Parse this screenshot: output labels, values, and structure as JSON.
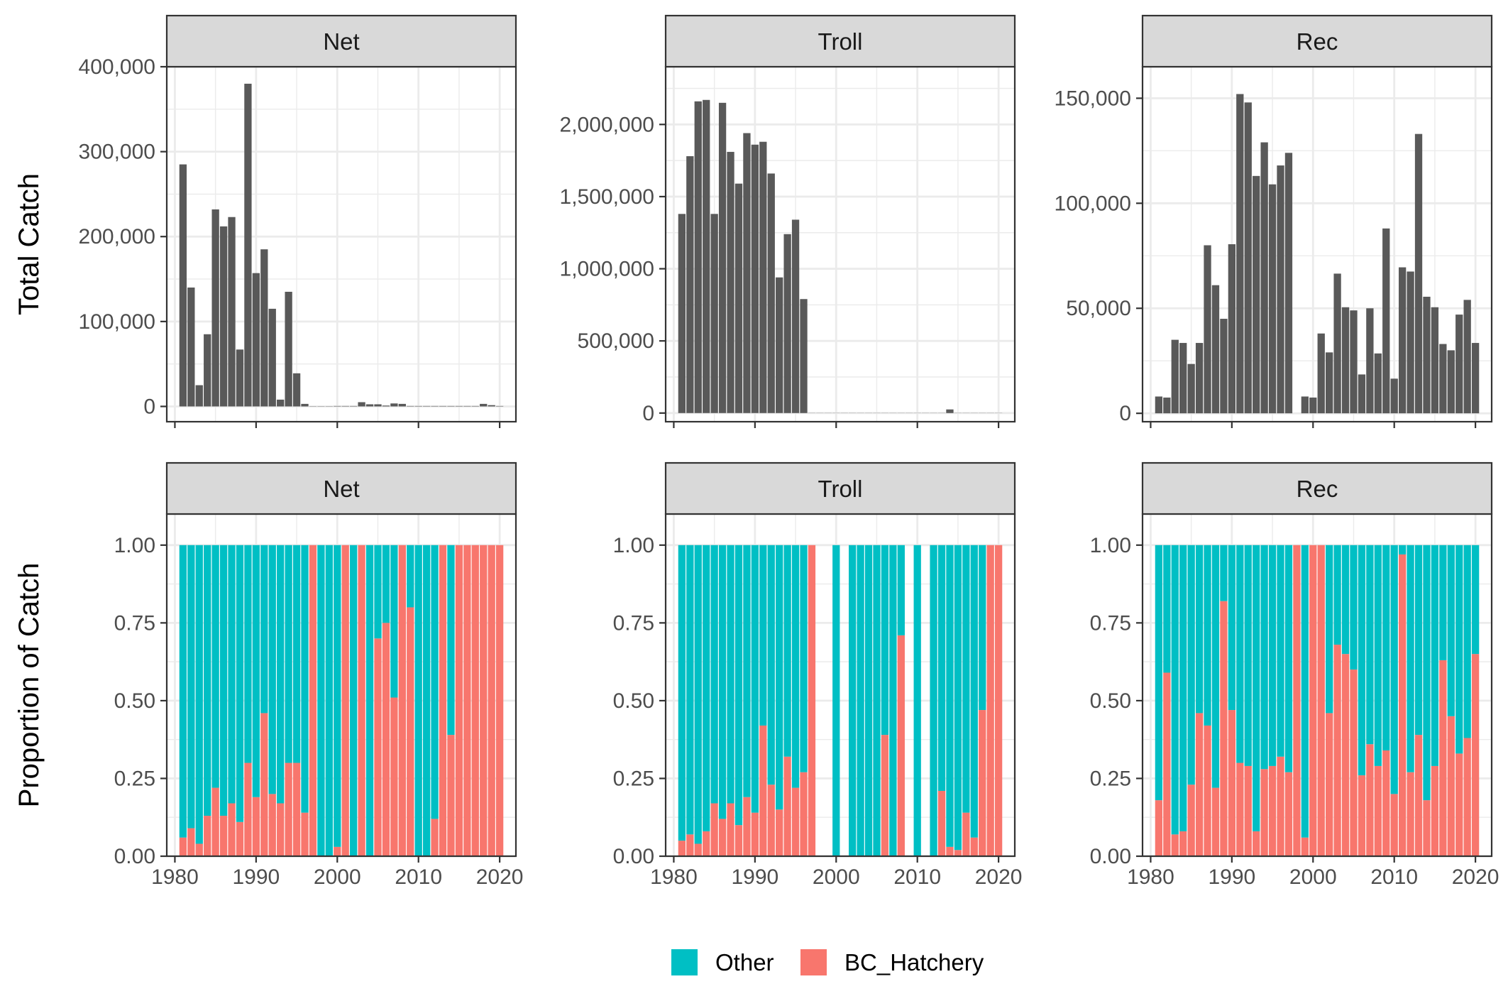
{
  "colors": {
    "total_bar": "#595959",
    "other": "#00BFC4",
    "bc_hatchery": "#F8766D",
    "strip_fill": "#D9D9D9",
    "grid": "#EBEBEB",
    "panel_border": "#333333"
  },
  "legend": [
    {
      "key": "other",
      "label": "Other"
    },
    {
      "key": "bc_hatchery",
      "label": "BC_Hatchery"
    }
  ],
  "chart_data": [
    {
      "type": "bar",
      "facet": "Net",
      "row": "Total Catch",
      "ylabel": "Total Catch",
      "xlim": [
        1979,
        2022
      ],
      "ylim": [
        -18000,
        400000
      ],
      "x_ticks": [
        1980,
        1990,
        2000,
        2010,
        2020
      ],
      "y_ticks": [
        0,
        100000,
        200000,
        300000,
        400000
      ],
      "y_tick_labels": [
        "0",
        "100,000",
        "200,000",
        "300,000",
        "400,000"
      ],
      "x": [
        1981,
        1982,
        1983,
        1984,
        1985,
        1986,
        1987,
        1988,
        1989,
        1990,
        1991,
        1992,
        1993,
        1994,
        1995,
        1996,
        1997,
        1998,
        1999,
        2000,
        2001,
        2002,
        2003,
        2004,
        2005,
        2006,
        2007,
        2008,
        2009,
        2010,
        2011,
        2012,
        2013,
        2014,
        2015,
        2016,
        2017,
        2018,
        2019,
        2020
      ],
      "values": [
        285000,
        140000,
        25000,
        85000,
        232000,
        212000,
        223000,
        67000,
        380000,
        157000,
        185000,
        115000,
        8000,
        135000,
        39000,
        3000,
        300,
        300,
        300,
        500,
        500,
        500,
        5000,
        2500,
        2500,
        1000,
        3500,
        3000,
        500,
        500,
        500,
        500,
        500,
        500,
        500,
        500,
        500,
        3000,
        1500,
        500
      ]
    },
    {
      "type": "bar",
      "facet": "Troll",
      "row": "Total Catch",
      "xlim": [
        1979,
        2022
      ],
      "ylim": [
        -60000,
        2400000
      ],
      "x_ticks": [
        1980,
        1990,
        2000,
        2010,
        2020
      ],
      "y_ticks": [
        0,
        500000,
        1000000,
        1500000,
        2000000
      ],
      "y_tick_labels": [
        "0",
        "500,000",
        "1,000,000",
        "1,500,000",
        "2,000,000"
      ],
      "x": [
        1981,
        1982,
        1983,
        1984,
        1985,
        1986,
        1987,
        1988,
        1989,
        1990,
        1991,
        1992,
        1993,
        1994,
        1995,
        1996,
        1997,
        1998,
        1999,
        2000,
        2001,
        2002,
        2003,
        2004,
        2005,
        2006,
        2007,
        2008,
        2009,
        2010,
        2011,
        2012,
        2013,
        2014,
        2015,
        2016,
        2017,
        2018,
        2019,
        2020
      ],
      "values": [
        1380000,
        1780000,
        2160000,
        2170000,
        1380000,
        2150000,
        1810000,
        1590000,
        1940000,
        1860000,
        1880000,
        1660000,
        940000,
        1240000,
        1340000,
        790000,
        1000,
        1000,
        1000,
        1000,
        1000,
        1000,
        1000,
        1000,
        1000,
        1000,
        1000,
        1000,
        1000,
        1000,
        1000,
        1000,
        1000,
        25000,
        1000,
        1000,
        1000,
        1000,
        1000,
        1000
      ]
    },
    {
      "type": "bar",
      "facet": "Rec",
      "row": "Total Catch",
      "xlim": [
        1979,
        2022
      ],
      "ylim": [
        -4000,
        165000
      ],
      "x_ticks": [
        1980,
        1990,
        2000,
        2010,
        2020
      ],
      "y_ticks": [
        0,
        50000,
        100000,
        150000
      ],
      "y_tick_labels": [
        "0",
        "50,000",
        "100,000",
        "150,000"
      ],
      "x": [
        1981,
        1982,
        1983,
        1984,
        1985,
        1986,
        1987,
        1988,
        1989,
        1990,
        1991,
        1992,
        1993,
        1994,
        1995,
        1996,
        1997,
        1999,
        2000,
        2001,
        2002,
        2003,
        2004,
        2005,
        2006,
        2007,
        2008,
        2009,
        2010,
        2011,
        2012,
        2013,
        2014,
        2015,
        2016,
        2017,
        2018,
        2019,
        2020
      ],
      "values": [
        8000,
        7500,
        35000,
        33500,
        23500,
        33500,
        80000,
        61000,
        45000,
        80500,
        152000,
        148000,
        113000,
        129000,
        109000,
        118000,
        124000,
        8000,
        7500,
        38000,
        29000,
        66500,
        50500,
        49000,
        18500,
        50000,
        28500,
        88000,
        16500,
        69500,
        67500,
        133000,
        55500,
        50500,
        33000,
        30000,
        47000,
        54000,
        33500
      ]
    },
    {
      "type": "bar",
      "stacked": true,
      "facet": "Net",
      "row": "Proportion of Catch",
      "ylabel": "Proportion of Catch",
      "xlim": [
        1979,
        2022
      ],
      "ylim": [
        0,
        1.1
      ],
      "x_ticks": [
        1980,
        1990,
        2000,
        2010,
        2020
      ],
      "x_tick_labels": [
        "1980",
        "1990",
        "2000",
        "2010",
        "2020"
      ],
      "y_ticks": [
        0,
        0.25,
        0.5,
        0.75,
        1
      ],
      "y_tick_labels": [
        "0.00",
        "0.25",
        "0.50",
        "0.75",
        "1.00"
      ],
      "x": [
        1981,
        1982,
        1983,
        1984,
        1985,
        1986,
        1987,
        1988,
        1989,
        1990,
        1991,
        1992,
        1993,
        1994,
        1995,
        1996,
        1997,
        1998,
        1999,
        2000,
        2001,
        2002,
        2003,
        2004,
        2005,
        2006,
        2007,
        2008,
        2009,
        2010,
        2011,
        2012,
        2013,
        2014,
        2015,
        2016,
        2017,
        2018,
        2019,
        2020
      ],
      "series": [
        {
          "key": "bc_hatchery",
          "name": "BC_Hatchery",
          "values": [
            0.06,
            0.09,
            0.04,
            0.13,
            0.22,
            0.13,
            0.17,
            0.11,
            0.3,
            0.19,
            0.46,
            0.2,
            0.17,
            0.3,
            0.3,
            0.14,
            1.0,
            0.0,
            0.0,
            0.03,
            1.0,
            0.0,
            1.0,
            0.0,
            0.7,
            0.75,
            0.51,
            1.0,
            0.8,
            0.0,
            0.0,
            0.12,
            1.0,
            0.39,
            1.0,
            1.0,
            1.0,
            1.0,
            1.0,
            1.0
          ]
        },
        {
          "key": "other",
          "name": "Other",
          "values": [
            0.94,
            0.91,
            0.96,
            0.87,
            0.78,
            0.87,
            0.83,
            0.89,
            0.7,
            0.81,
            0.54,
            0.8,
            0.83,
            0.7,
            0.7,
            0.86,
            0.0,
            1.0,
            1.0,
            0.97,
            0.0,
            1.0,
            0.0,
            1.0,
            0.3,
            0.25,
            0.49,
            0.0,
            0.2,
            1.0,
            1.0,
            0.88,
            0.0,
            0.61,
            0.0,
            0.0,
            0.0,
            0.0,
            0.0,
            0.0
          ]
        }
      ]
    },
    {
      "type": "bar",
      "stacked": true,
      "facet": "Troll",
      "row": "Proportion of Catch",
      "xlim": [
        1979,
        2022
      ],
      "ylim": [
        0,
        1.1
      ],
      "x_ticks": [
        1980,
        1990,
        2000,
        2010,
        2020
      ],
      "x_tick_labels": [
        "1980",
        "1990",
        "2000",
        "2010",
        "2020"
      ],
      "y_ticks": [
        0,
        0.25,
        0.5,
        0.75,
        1
      ],
      "y_tick_labels": [
        "0.00",
        "0.25",
        "0.50",
        "0.75",
        "1.00"
      ],
      "x": [
        1981,
        1982,
        1983,
        1984,
        1985,
        1986,
        1987,
        1988,
        1989,
        1990,
        1991,
        1992,
        1993,
        1994,
        1995,
        1996,
        1997,
        2000,
        2002,
        2003,
        2004,
        2005,
        2006,
        2007,
        2008,
        2010,
        2012,
        2013,
        2014,
        2015,
        2016,
        2017,
        2018,
        2019,
        2020
      ],
      "series": [
        {
          "key": "bc_hatchery",
          "name": "BC_Hatchery",
          "values": [
            0.05,
            0.07,
            0.04,
            0.08,
            0.17,
            0.12,
            0.17,
            0.1,
            0.19,
            0.14,
            0.42,
            0.23,
            0.15,
            0.32,
            0.22,
            0.27,
            1.0,
            0.0,
            0.0,
            0.0,
            0.0,
            0.0,
            0.39,
            0.0,
            0.71,
            0.0,
            0.0,
            0.21,
            0.03,
            0.02,
            0.14,
            0.06,
            0.47,
            1.0,
            1.0
          ]
        },
        {
          "key": "other",
          "name": "Other",
          "values": [
            0.95,
            0.93,
            0.96,
            0.92,
            0.83,
            0.88,
            0.83,
            0.9,
            0.81,
            0.86,
            0.58,
            0.77,
            0.85,
            0.68,
            0.78,
            0.73,
            0.0,
            1.0,
            1.0,
            1.0,
            1.0,
            1.0,
            0.61,
            1.0,
            0.29,
            1.0,
            1.0,
            0.79,
            0.97,
            0.98,
            0.86,
            0.94,
            0.53,
            0.0,
            0.0
          ]
        }
      ]
    },
    {
      "type": "bar",
      "stacked": true,
      "facet": "Rec",
      "row": "Proportion of Catch",
      "xlim": [
        1979,
        2022
      ],
      "ylim": [
        0,
        1.1
      ],
      "x_ticks": [
        1980,
        1990,
        2000,
        2010,
        2020
      ],
      "x_tick_labels": [
        "1980",
        "1990",
        "2000",
        "2010",
        "2020"
      ],
      "y_ticks": [
        0,
        0.25,
        0.5,
        0.75,
        1
      ],
      "y_tick_labels": [
        "0.00",
        "0.25",
        "0.50",
        "0.75",
        "1.00"
      ],
      "x": [
        1981,
        1982,
        1983,
        1984,
        1985,
        1986,
        1987,
        1988,
        1989,
        1990,
        1991,
        1992,
        1993,
        1994,
        1995,
        1996,
        1997,
        1998,
        1999,
        2000,
        2001,
        2002,
        2003,
        2004,
        2005,
        2006,
        2007,
        2008,
        2009,
        2010,
        2011,
        2012,
        2013,
        2014,
        2015,
        2016,
        2017,
        2018,
        2019,
        2020
      ],
      "series": [
        {
          "key": "bc_hatchery",
          "name": "BC_Hatchery",
          "values": [
            0.18,
            0.59,
            0.07,
            0.08,
            0.23,
            0.46,
            0.42,
            0.22,
            0.82,
            0.47,
            0.3,
            0.29,
            0.08,
            0.28,
            0.29,
            0.32,
            0.27,
            1.0,
            0.06,
            1.0,
            1.0,
            0.46,
            0.68,
            0.65,
            0.6,
            0.26,
            0.36,
            0.29,
            0.34,
            0.2,
            0.97,
            0.27,
            0.39,
            0.18,
            0.29,
            0.63,
            0.45,
            0.33,
            0.38,
            0.65
          ]
        },
        {
          "key": "other",
          "name": "Other",
          "values": [
            0.82,
            0.41,
            0.93,
            0.92,
            0.77,
            0.54,
            0.58,
            0.78,
            0.18,
            0.53,
            0.7,
            0.71,
            0.92,
            0.72,
            0.71,
            0.68,
            0.73,
            0.0,
            0.94,
            0.0,
            0.0,
            0.54,
            0.32,
            0.35,
            0.4,
            0.74,
            0.64,
            0.71,
            0.66,
            0.8,
            0.03,
            0.73,
            0.61,
            0.82,
            0.71,
            0.37,
            0.55,
            0.67,
            0.62,
            0.35
          ]
        }
      ]
    }
  ]
}
